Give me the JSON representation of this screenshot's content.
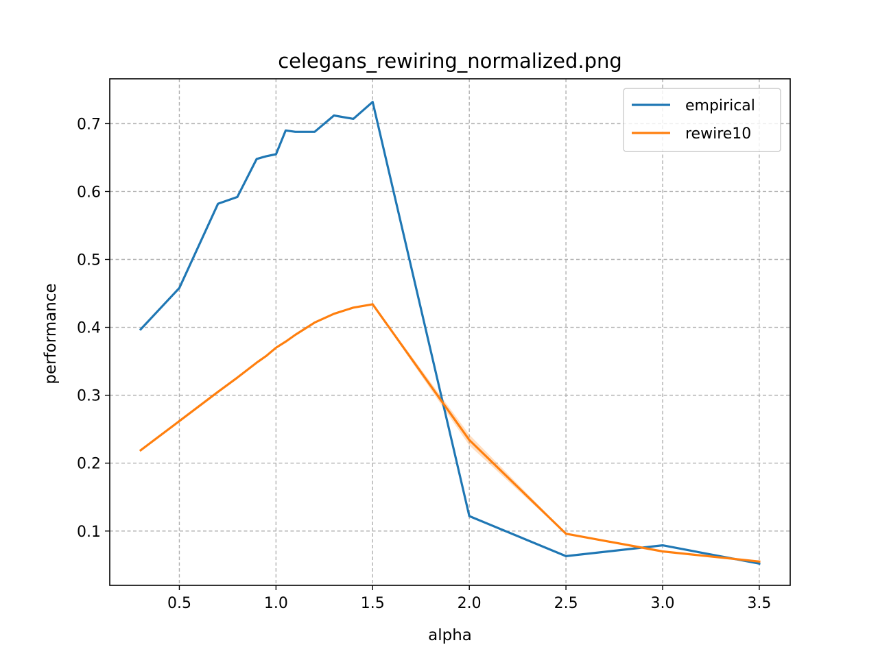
{
  "chart_data": {
    "type": "line",
    "title": "celegans_rewiring_normalized.png",
    "xlabel": "alpha",
    "ylabel": "performance",
    "xlim": [
      0.14,
      3.66
    ],
    "ylim": [
      0.02,
      0.766
    ],
    "xticks": [
      0.5,
      1.0,
      1.5,
      2.0,
      2.5,
      3.0,
      3.5
    ],
    "xtick_labels": [
      "0.5",
      "1.0",
      "1.5",
      "2.0",
      "2.5",
      "3.0",
      "3.5"
    ],
    "yticks": [
      0.1,
      0.2,
      0.3,
      0.4,
      0.5,
      0.6,
      0.7
    ],
    "ytick_labels": [
      "0.1",
      "0.2",
      "0.3",
      "0.4",
      "0.5",
      "0.6",
      "0.7"
    ],
    "grid": true,
    "legend_position": "top-right",
    "series": [
      {
        "name": "empirical",
        "color": "#1f77b4",
        "x": [
          0.3,
          0.5,
          0.7,
          0.8,
          0.9,
          0.95,
          1.0,
          1.05,
          1.1,
          1.2,
          1.3,
          1.4,
          1.5,
          2.0,
          2.5,
          3.0,
          3.5
        ],
        "y": [
          0.397,
          0.458,
          0.582,
          0.592,
          0.648,
          0.652,
          0.655,
          0.69,
          0.688,
          0.688,
          0.712,
          0.707,
          0.732,
          0.122,
          0.063,
          0.079,
          0.052
        ]
      },
      {
        "name": "rewire10",
        "color": "#ff7f0e",
        "x": [
          0.3,
          0.5,
          0.7,
          0.8,
          0.9,
          0.95,
          1.0,
          1.05,
          1.1,
          1.2,
          1.3,
          1.4,
          1.5,
          2.0,
          2.5,
          3.0,
          3.5
        ],
        "y": [
          0.219,
          0.262,
          0.305,
          0.326,
          0.348,
          0.358,
          0.37,
          0.379,
          0.389,
          0.407,
          0.42,
          0.429,
          0.434,
          0.234,
          0.096,
          0.07,
          0.055
        ],
        "band_lower": [
          0.218,
          0.261,
          0.304,
          0.325,
          0.347,
          0.357,
          0.369,
          0.378,
          0.388,
          0.406,
          0.419,
          0.428,
          0.433,
          0.226,
          0.095,
          0.069,
          0.054
        ],
        "band_upper": [
          0.22,
          0.263,
          0.306,
          0.327,
          0.349,
          0.359,
          0.371,
          0.38,
          0.39,
          0.408,
          0.421,
          0.43,
          0.435,
          0.242,
          0.097,
          0.071,
          0.056
        ]
      }
    ]
  }
}
